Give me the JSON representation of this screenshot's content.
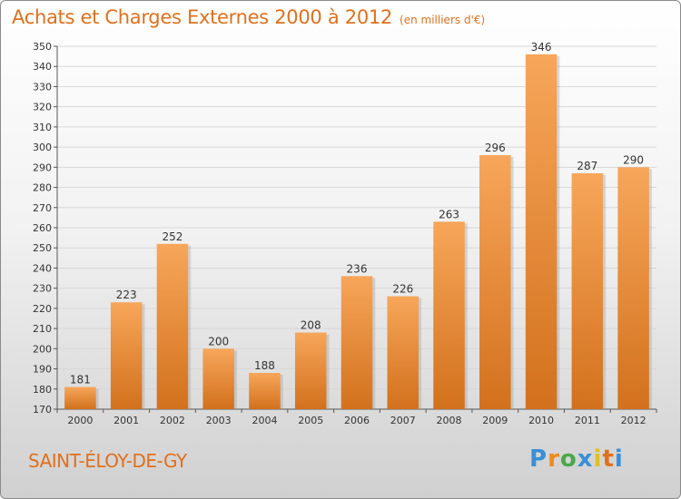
{
  "title": "Achats et Charges Externes 2000 à 2012",
  "unit_label": "(en milliers d'€)",
  "location": "SAINT-ÉLOY-DE-GY",
  "logo_text": "Proxiti",
  "colors": {
    "accent": "#e0701c",
    "bar_light": "#f7a65a",
    "bar_dark": "#d2711d",
    "logo_letters": [
      "#3a8fd6",
      "#f08a1c",
      "#4aa84a",
      "#3a8fd6",
      "#e0c020",
      "#e0701c",
      "#3a8fd6"
    ]
  },
  "chart_data": {
    "type": "bar",
    "title": "Achats et Charges Externes 2000 à 2012",
    "subtitle": "(en milliers d'€)",
    "xlabel": "",
    "ylabel": "",
    "categories": [
      "2000",
      "2001",
      "2002",
      "2003",
      "2004",
      "2005",
      "2006",
      "2007",
      "2008",
      "2009",
      "2010",
      "2011",
      "2012"
    ],
    "values": [
      181,
      223,
      252,
      200,
      188,
      208,
      236,
      226,
      263,
      296,
      346,
      287,
      290
    ],
    "ylim": [
      170,
      350
    ],
    "yticks": [
      170,
      180,
      190,
      200,
      210,
      220,
      230,
      240,
      250,
      260,
      270,
      280,
      290,
      300,
      310,
      320,
      330,
      340,
      350
    ],
    "grid": true,
    "data_labels": true
  }
}
